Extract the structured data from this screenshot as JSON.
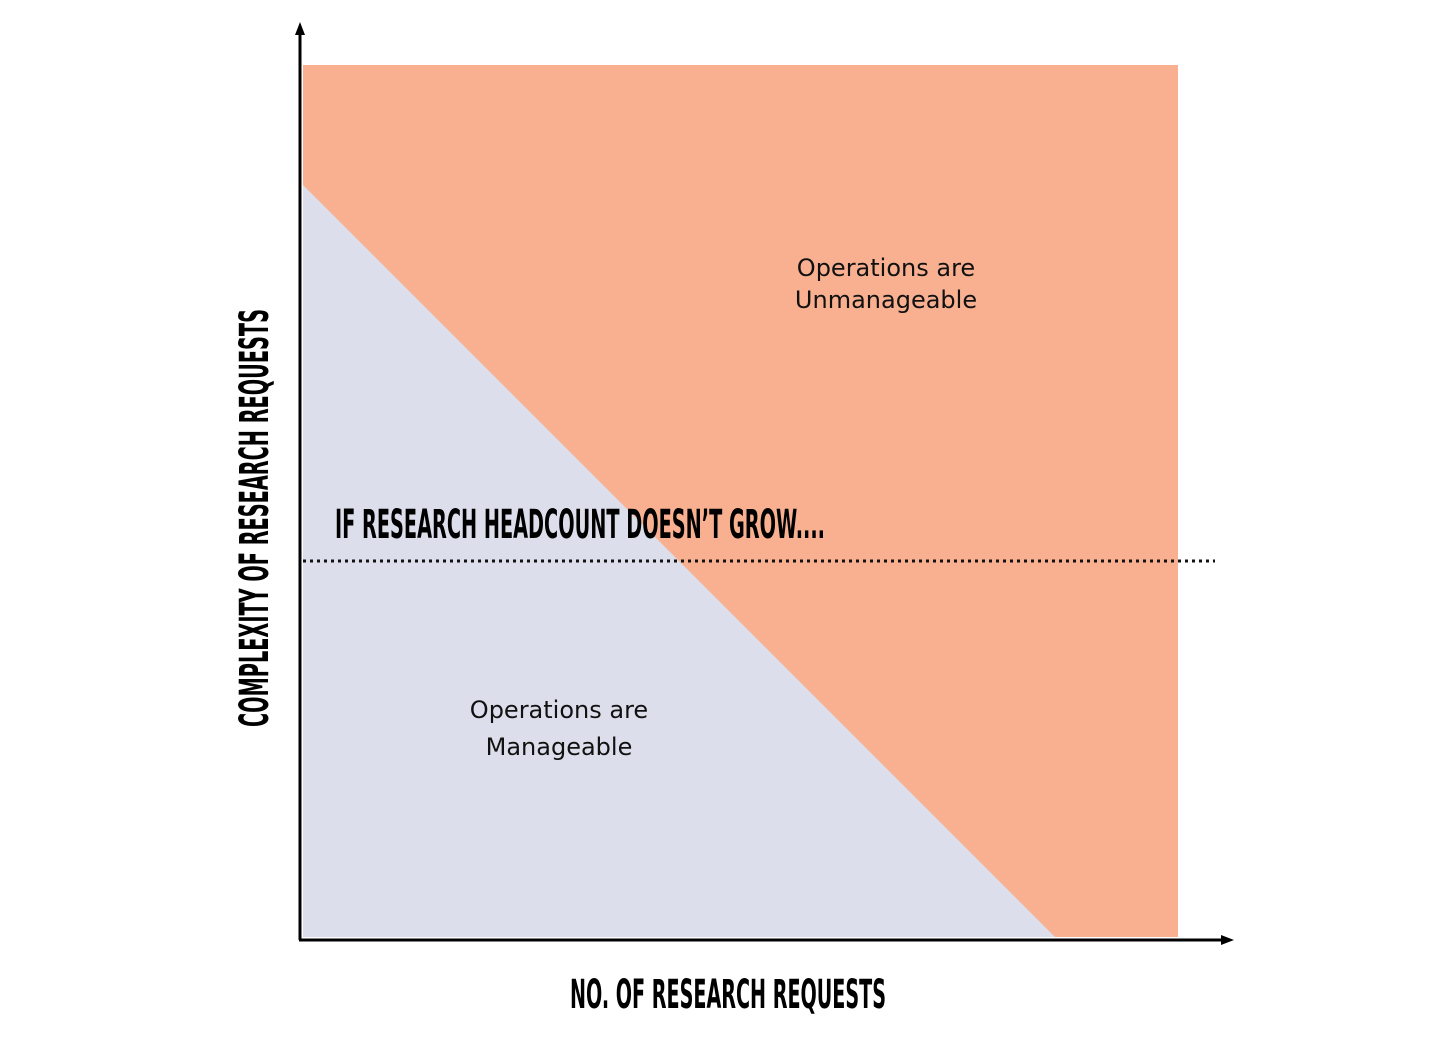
{
  "axes": {
    "x_label": "NO. OF RESEARCH REQUESTS",
    "y_label": "COMPLEXITY OF RESEARCH REQUESTS"
  },
  "regions": [
    {
      "lines": [
        "Operations are",
        "Unmanageable"
      ]
    },
    {
      "lines": [
        "Operations are",
        "Manageable"
      ]
    }
  ],
  "annotation": "IF RESEARCH HEADCOUNT DOESN’T GROW...."
}
